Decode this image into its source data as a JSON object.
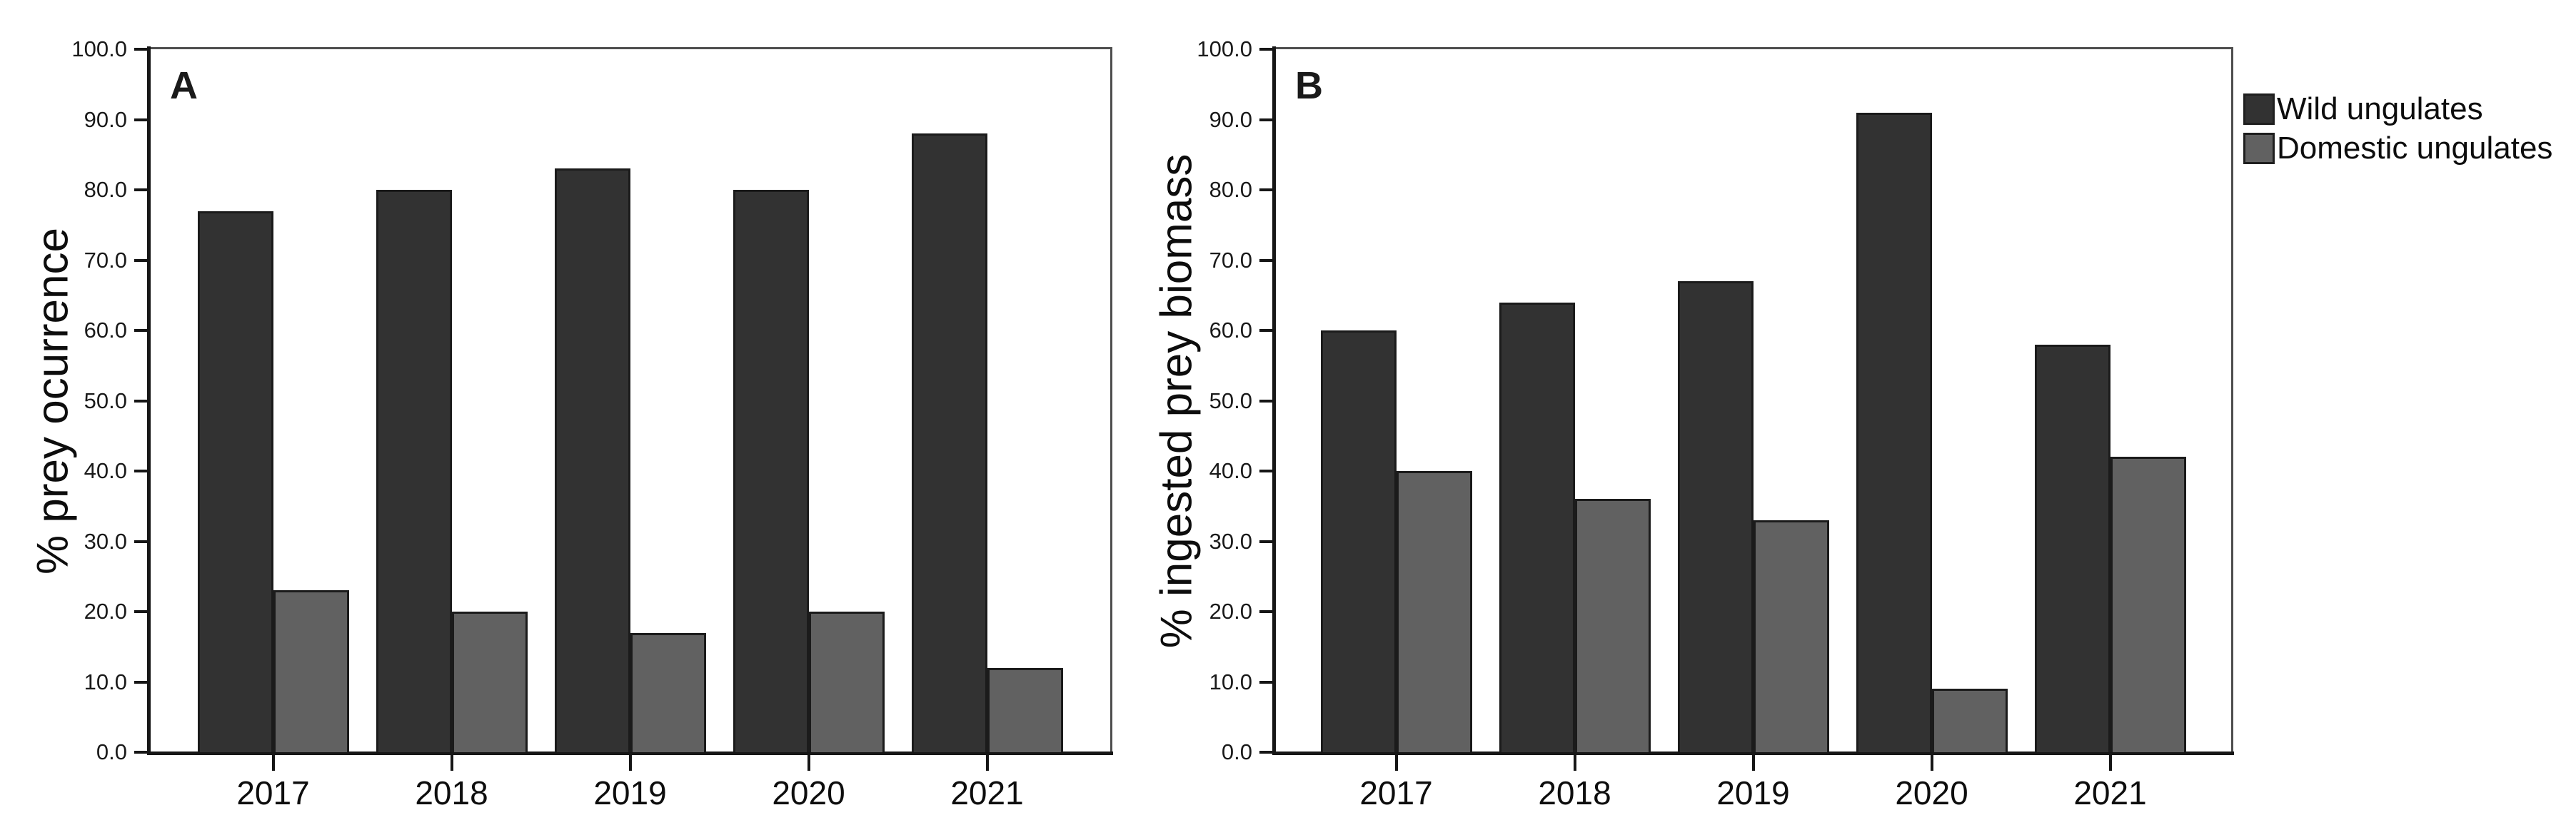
{
  "figure": {
    "background": "#ffffff",
    "legend": {
      "position": "outside-top-right",
      "items": [
        {
          "label": "Wild ungulates",
          "color": "#323232"
        },
        {
          "label": "Domestic ungulates",
          "color": "#616161"
        }
      ]
    }
  },
  "chart_data": [
    {
      "type": "bar",
      "panel_label": "A",
      "title": "",
      "xlabel": "",
      "ylabel": "% prey ocurrence",
      "categories": [
        "2017",
        "2018",
        "2019",
        "2020",
        "2021"
      ],
      "series": [
        {
          "name": "Wild ungulates",
          "color": "#323232",
          "values": [
            77,
            80,
            83,
            80,
            88
          ]
        },
        {
          "name": "Domestic ungulates",
          "color": "#616161",
          "values": [
            23,
            20,
            17,
            20,
            12
          ]
        }
      ],
      "ylim": [
        0,
        100
      ],
      "ytick_labels": [
        "0.0",
        "10.0",
        "20.0",
        "30.0",
        "40.0",
        "50.0",
        "60.0",
        "70.0",
        "80.0",
        "90.0",
        "100.0"
      ],
      "grid": false,
      "legend_position": "shared-right"
    },
    {
      "type": "bar",
      "panel_label": "B",
      "title": "",
      "xlabel": "",
      "ylabel": "% ingested prey biomass",
      "categories": [
        "2017",
        "2018",
        "2019",
        "2020",
        "2021"
      ],
      "series": [
        {
          "name": "Wild ungulates",
          "color": "#323232",
          "values": [
            60,
            64,
            67,
            91,
            58
          ]
        },
        {
          "name": "Domestic ungulates",
          "color": "#616161",
          "values": [
            40,
            36,
            33,
            9,
            42
          ]
        }
      ],
      "ylim": [
        0,
        100
      ],
      "ytick_labels": [
        "0.0",
        "10.0",
        "20.0",
        "30.0",
        "40.0",
        "50.0",
        "60.0",
        "70.0",
        "80.0",
        "90.0",
        "100.0"
      ],
      "grid": false,
      "legend_position": "shared-right"
    }
  ]
}
